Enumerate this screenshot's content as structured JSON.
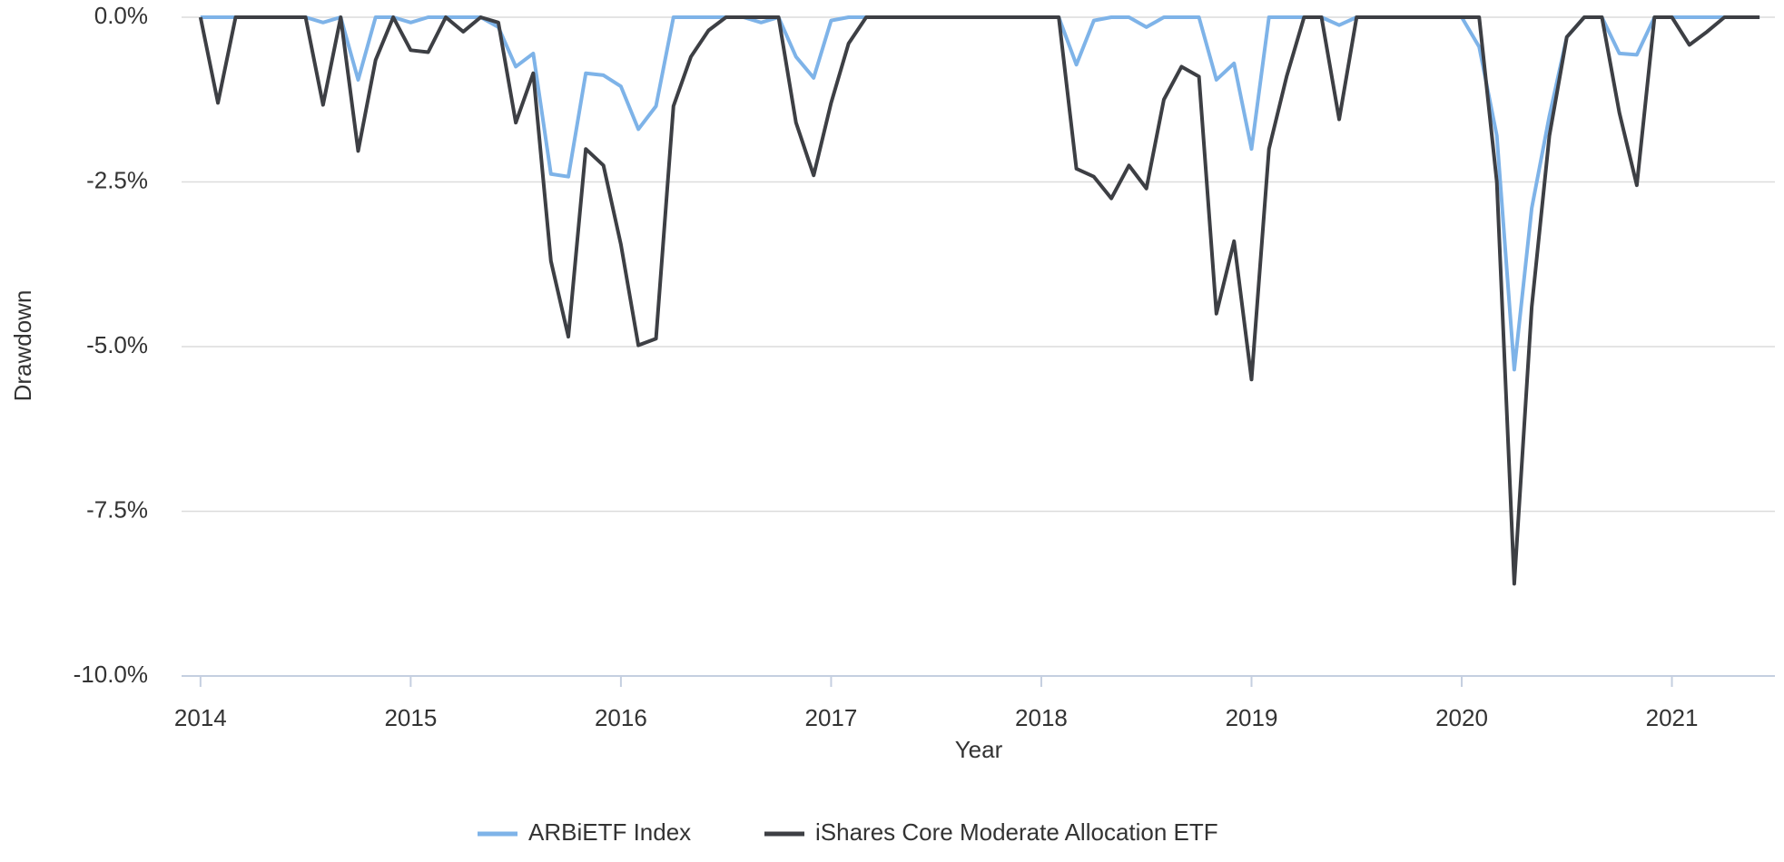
{
  "chart_data": {
    "type": "line",
    "xlabel": "Year",
    "ylabel": "Drawdown",
    "x": [
      2014,
      2014.083,
      2014.167,
      2014.25,
      2014.333,
      2014.417,
      2014.5,
      2014.583,
      2014.667,
      2014.75,
      2014.833,
      2014.917,
      2015,
      2015.083,
      2015.167,
      2015.25,
      2015.333,
      2015.417,
      2015.5,
      2015.583,
      2015.667,
      2015.75,
      2015.833,
      2015.917,
      2016,
      2016.083,
      2016.167,
      2016.25,
      2016.333,
      2016.417,
      2016.5,
      2016.583,
      2016.667,
      2016.75,
      2016.833,
      2016.917,
      2017,
      2017.083,
      2017.167,
      2017.25,
      2017.333,
      2017.417,
      2017.5,
      2017.583,
      2017.667,
      2017.75,
      2017.833,
      2017.917,
      2018,
      2018.083,
      2018.167,
      2018.25,
      2018.333,
      2018.417,
      2018.5,
      2018.583,
      2018.667,
      2018.75,
      2018.833,
      2018.917,
      2019,
      2019.083,
      2019.167,
      2019.25,
      2019.333,
      2019.417,
      2019.5,
      2019.583,
      2019.667,
      2019.75,
      2019.833,
      2019.917,
      2020,
      2020.083,
      2020.167,
      2020.25,
      2020.333,
      2020.417,
      2020.5,
      2020.583,
      2020.667,
      2020.75,
      2020.833,
      2020.917,
      2021,
      2021.083,
      2021.167,
      2021.25,
      2021.333,
      2021.417
    ],
    "series": [
      {
        "name": "ARBiETF Index",
        "color": "#7eb3e8",
        "values": [
          0,
          0,
          0,
          0,
          0,
          0,
          0,
          -0.08,
          0,
          -0.95,
          0,
          0,
          -0.08,
          0,
          0,
          0,
          0,
          -0.15,
          -0.75,
          -0.55,
          -2.38,
          -2.42,
          -0.85,
          -0.88,
          -1.05,
          -1.7,
          -1.35,
          0,
          0,
          0,
          0,
          0,
          -0.08,
          0,
          -0.6,
          -0.92,
          -0.05,
          0,
          0,
          0,
          0,
          0,
          0,
          0,
          0,
          0,
          0,
          0,
          0,
          0,
          -0.72,
          -0.05,
          0,
          0,
          -0.15,
          0,
          0,
          0,
          -0.95,
          -0.7,
          -2.0,
          0,
          0,
          0,
          0,
          -0.12,
          0,
          0,
          0,
          0,
          0,
          0,
          0,
          -0.45,
          -1.8,
          -5.35,
          -2.9,
          -1.5,
          -0.3,
          0,
          0,
          -0.55,
          -0.57,
          0,
          0,
          0,
          0,
          0,
          0,
          0
        ]
      },
      {
        "name": "iShares Core Moderate Allocation ETF",
        "color": "#3d3f44",
        "values": [
          0,
          -1.3,
          0,
          0,
          0,
          0,
          0,
          -1.33,
          0,
          -2.03,
          -0.65,
          0,
          -0.5,
          -0.53,
          0,
          -0.22,
          0,
          -0.08,
          -1.6,
          -0.85,
          -3.7,
          -4.85,
          -2.0,
          -2.25,
          -3.45,
          -4.98,
          -4.88,
          -1.35,
          -0.6,
          -0.2,
          0,
          0,
          0,
          0,
          -1.6,
          -2.4,
          -1.3,
          -0.4,
          0,
          0,
          0,
          0,
          0,
          0,
          0,
          0,
          0,
          0,
          0,
          0,
          -2.3,
          -2.42,
          -2.75,
          -2.25,
          -2.6,
          -1.25,
          -0.75,
          -0.9,
          -4.5,
          -3.4,
          -5.5,
          -2.0,
          -0.9,
          0,
          0,
          -1.55,
          0,
          0,
          0,
          0,
          0,
          0,
          0,
          0,
          -2.5,
          -8.6,
          -4.4,
          -1.8,
          -0.3,
          0,
          0,
          -1.45,
          -2.55,
          0,
          0,
          -0.42,
          -0.22,
          0,
          0,
          0
        ]
      }
    ],
    "xlim": [
      2013.91,
      2021.49
    ],
    "xticks": [
      2014,
      2015,
      2016,
      2017,
      2018,
      2019,
      2020,
      2021
    ],
    "ylim": [
      -10,
      0
    ],
    "yticks": [
      {
        "value": 0,
        "label": "0.0%"
      },
      {
        "value": -2.5,
        "label": "-2.5%"
      },
      {
        "value": -5,
        "label": "-5.0%"
      },
      {
        "value": -7.5,
        "label": "-7.5%"
      },
      {
        "value": -10,
        "label": "-10.0%"
      }
    ],
    "grid": true,
    "legend": "bottom"
  }
}
